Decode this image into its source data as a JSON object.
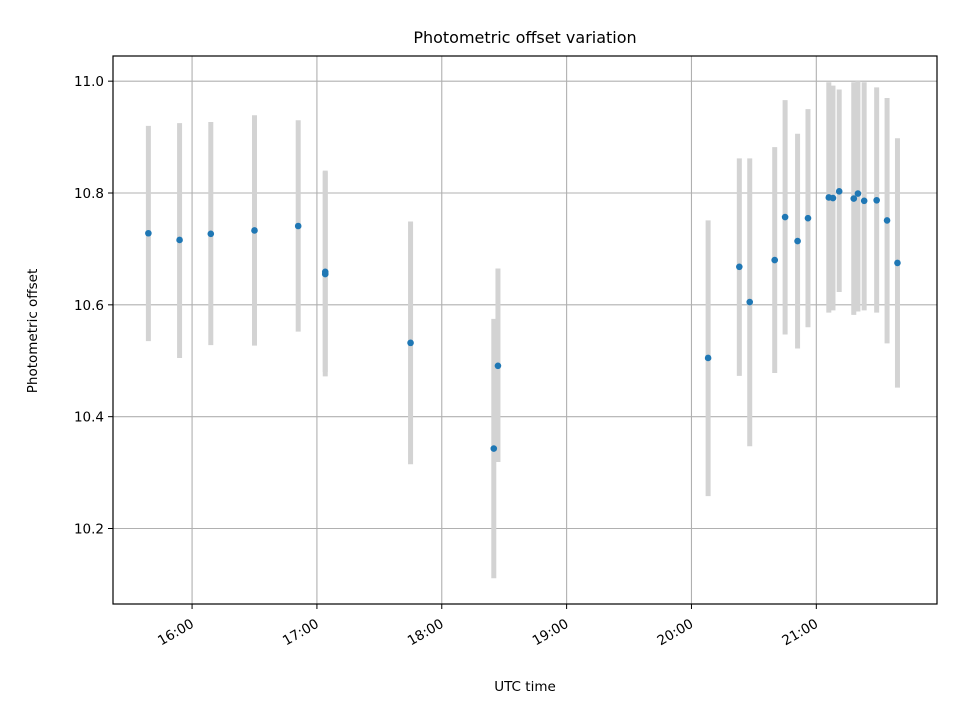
{
  "chart_data": {
    "type": "scatter",
    "title": "Photometric offset variation",
    "xlabel": "UTC time",
    "ylabel": "Photometric offset",
    "xlim": [
      "15:22",
      "21:58"
    ],
    "ylim": [
      10.065,
      11.045
    ],
    "x_ticks": [
      "16:00",
      "17:00",
      "18:00",
      "19:00",
      "20:00",
      "21:00"
    ],
    "y_ticks": [
      10.2,
      10.4,
      10.6,
      10.8,
      11.0
    ],
    "y_tick_labels": [
      "10.2",
      "10.4",
      "10.6",
      "10.8",
      "11.0"
    ],
    "grid": true,
    "colors": {
      "points": "#1f77b4",
      "error_bars": "#d3d3d3",
      "grid": "#b0b0b0"
    },
    "series": [
      {
        "points": [
          {
            "time": "15:39",
            "y": 10.728,
            "err_low": 10.535,
            "err_high": 10.92
          },
          {
            "time": "15:54",
            "y": 10.716,
            "err_low": 10.505,
            "err_high": 10.925
          },
          {
            "time": "16:09",
            "y": 10.727,
            "err_low": 10.528,
            "err_high": 10.927
          },
          {
            "time": "16:30",
            "y": 10.733,
            "err_low": 10.527,
            "err_high": 10.939
          },
          {
            "time": "16:51",
            "y": 10.741,
            "err_low": 10.552,
            "err_high": 10.93
          },
          {
            "time": "17:04",
            "y": 10.659,
            "err_low": 10.48,
            "err_high": 10.84
          },
          {
            "time": "17:04",
            "y": 10.655,
            "err_low": 10.472,
            "err_high": 10.838
          },
          {
            "time": "17:45",
            "y": 10.532,
            "err_low": 10.315,
            "err_high": 10.749
          },
          {
            "time": "18:25",
            "y": 10.343,
            "err_low": 10.111,
            "err_high": 10.575
          },
          {
            "time": "18:27",
            "y": 10.491,
            "err_low": 10.319,
            "err_high": 10.665
          },
          {
            "time": "20:08",
            "y": 10.505,
            "err_low": 10.258,
            "err_high": 10.751
          },
          {
            "time": "20:23",
            "y": 10.668,
            "err_low": 10.473,
            "err_high": 10.862
          },
          {
            "time": "20:28",
            "y": 10.605,
            "err_low": 10.347,
            "err_high": 10.862
          },
          {
            "time": "20:40",
            "y": 10.68,
            "err_low": 10.478,
            "err_high": 10.882
          },
          {
            "time": "20:45",
            "y": 10.757,
            "err_low": 10.547,
            "err_high": 10.966
          },
          {
            "time": "20:51",
            "y": 10.714,
            "err_low": 10.522,
            "err_high": 10.906
          },
          {
            "time": "20:56",
            "y": 10.755,
            "err_low": 10.56,
            "err_high": 10.95
          },
          {
            "time": "21:06",
            "y": 10.792,
            "err_low": 10.586,
            "err_high": 10.998
          },
          {
            "time": "21:08",
            "y": 10.791,
            "err_low": 10.59,
            "err_high": 10.992
          },
          {
            "time": "21:11",
            "y": 10.803,
            "err_low": 10.623,
            "err_high": 10.985
          },
          {
            "time": "21:18",
            "y": 10.79,
            "err_low": 10.582,
            "err_high": 10.998
          },
          {
            "time": "21:20",
            "y": 10.799,
            "err_low": 10.588,
            "err_high": 11.0
          },
          {
            "time": "21:23",
            "y": 10.786,
            "err_low": 10.59,
            "err_high": 10.998
          },
          {
            "time": "21:29",
            "y": 10.787,
            "err_low": 10.586,
            "err_high": 10.989
          },
          {
            "time": "21:34",
            "y": 10.751,
            "err_low": 10.531,
            "err_high": 10.97
          },
          {
            "time": "21:39",
            "y": 10.675,
            "err_low": 10.452,
            "err_high": 10.898
          }
        ]
      }
    ]
  }
}
